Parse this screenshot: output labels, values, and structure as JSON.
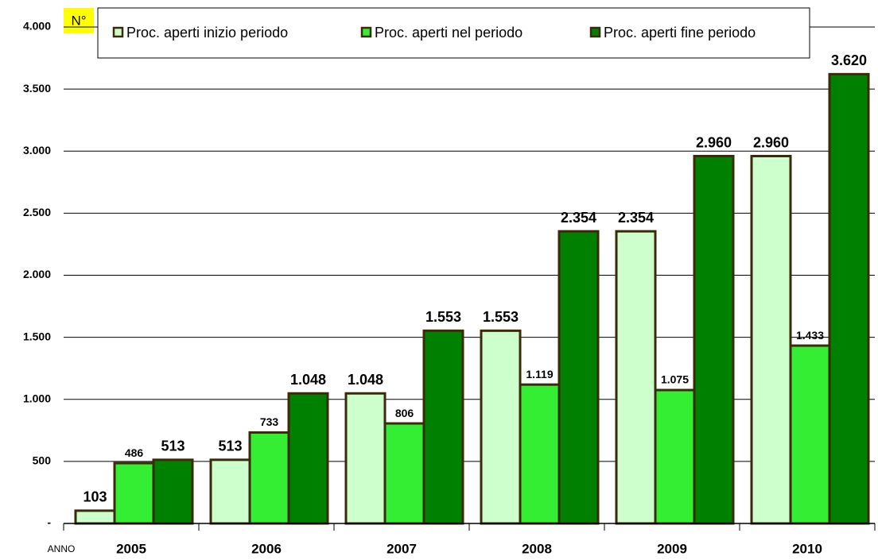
{
  "chart_data": {
    "type": "bar",
    "y_label": "N°",
    "x_label": "ANNO",
    "categories": [
      "2005",
      "2006",
      "2007",
      "2008",
      "2009",
      "2010"
    ],
    "series": [
      {
        "name": "Proc. aperti inizio periodo",
        "color": "#ccffcc",
        "values": [
          103,
          513,
          1048,
          1553,
          2354,
          2960
        ],
        "value_labels": [
          "103",
          "513",
          "1.048",
          "1.553",
          "2.354",
          "2.960"
        ]
      },
      {
        "name": "Proc. aperti nel periodo",
        "color": "#33ee33",
        "values": [
          486,
          733,
          806,
          1119,
          1075,
          1433
        ],
        "value_labels": [
          "486",
          "733",
          "806",
          "1.119",
          "1.075",
          "1.433"
        ]
      },
      {
        "name": "Proc. aperti fine periodo",
        "color": "#008000",
        "values": [
          513,
          1048,
          1553,
          2354,
          2960,
          3620
        ],
        "value_labels": [
          "513",
          "1.048",
          "1.553",
          "2.354",
          "2.960",
          "3.620"
        ]
      }
    ],
    "ylim": [
      0,
      4000
    ],
    "yticks": [
      {
        "value": 0,
        "label": "-"
      },
      500,
      {
        "value": 1000,
        "label": "1.000"
      },
      {
        "value": 1500,
        "label": "1.500"
      },
      {
        "value": 2000,
        "label": "2.000"
      },
      {
        "value": 2500,
        "label": "2.500"
      },
      {
        "value": 3000,
        "label": "3.000"
      },
      {
        "value": 3500,
        "label": "3.500"
      },
      {
        "value": 4000,
        "label": "4.000"
      }
    ],
    "grid": true
  }
}
